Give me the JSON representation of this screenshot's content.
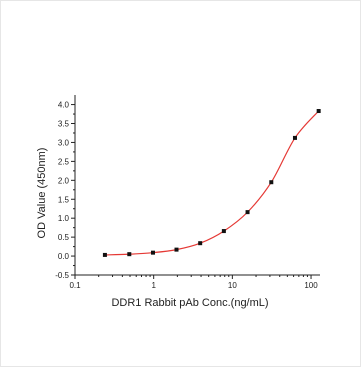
{
  "chart_data": {
    "type": "scatter",
    "title": "",
    "xlabel": "DDR1 Rabbit pAb Conc.(ng/mL)",
    "ylabel": "OD Value (450nm)",
    "x_scale": "log",
    "xlim": [
      0.1,
      130
    ],
    "ylim": [
      -0.5,
      4.2
    ],
    "x_ticks": [
      0.1,
      1,
      10,
      100
    ],
    "x_tick_labels": [
      "0.1",
      "1",
      "10",
      "100"
    ],
    "y_ticks": [
      -0.5,
      0.0,
      0.5,
      1.0,
      1.5,
      2.0,
      2.5,
      3.0,
      3.5,
      4.0
    ],
    "y_tick_labels": [
      "-0.5",
      "0.0",
      "0.5",
      "1.0",
      "1.5",
      "2.0",
      "2.5",
      "3.0",
      "3.5",
      "4.0"
    ],
    "grid": false,
    "series": [
      {
        "x": [
          0.24,
          0.49,
          0.98,
          1.95,
          3.9,
          7.8,
          15.6,
          31.25,
          62.5,
          125
        ],
        "y": [
          0.03,
          0.05,
          0.09,
          0.17,
          0.34,
          0.66,
          1.16,
          1.95,
          3.12,
          3.83
        ],
        "color": "#111111",
        "fit_color": "#e53935"
      }
    ]
  }
}
